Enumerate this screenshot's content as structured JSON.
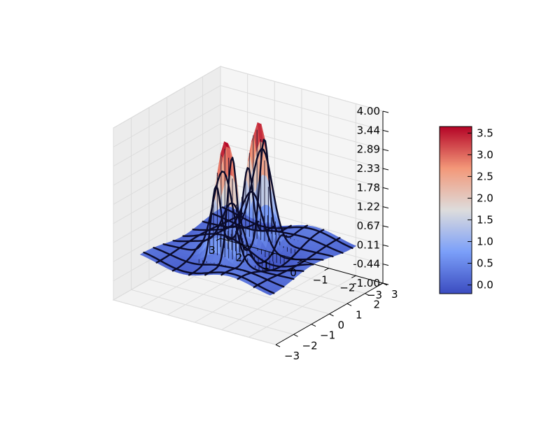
{
  "chart_data": {
    "type": "surface3d",
    "title": "",
    "xlabel": "",
    "ylabel": "",
    "zlabel": "",
    "x_ticks": [
      "3",
      "2",
      "1",
      "0",
      "−1",
      "−2",
      "−3"
    ],
    "y_ticks": [
      "−3",
      "−2",
      "−1",
      "0",
      "1",
      "2",
      "3"
    ],
    "z_ticks": [
      "4.00",
      "3.44",
      "2.89",
      "2.33",
      "1.78",
      "1.22",
      "0.67",
      "0.11",
      "-0.44",
      "-1.00"
    ],
    "xlim": [
      -3,
      3
    ],
    "ylim": [
      -3,
      3
    ],
    "zlim": [
      -1,
      4
    ],
    "colormap": "coolwarm",
    "colorbar": {
      "ticks": [
        "3.5",
        "3.0",
        "2.5",
        "2.0",
        "1.5",
        "1.0",
        "0.5",
        "0.0"
      ],
      "range": [
        -0.2,
        3.65
      ],
      "placement": "right"
    },
    "surface": {
      "peaks": [
        {
          "x": 0.2,
          "y": -0.9,
          "z": 3.62
        },
        {
          "x": 0.2,
          "y": 0.9,
          "z": 3.62
        }
      ],
      "base_level": 0.2
    },
    "grid": true
  }
}
